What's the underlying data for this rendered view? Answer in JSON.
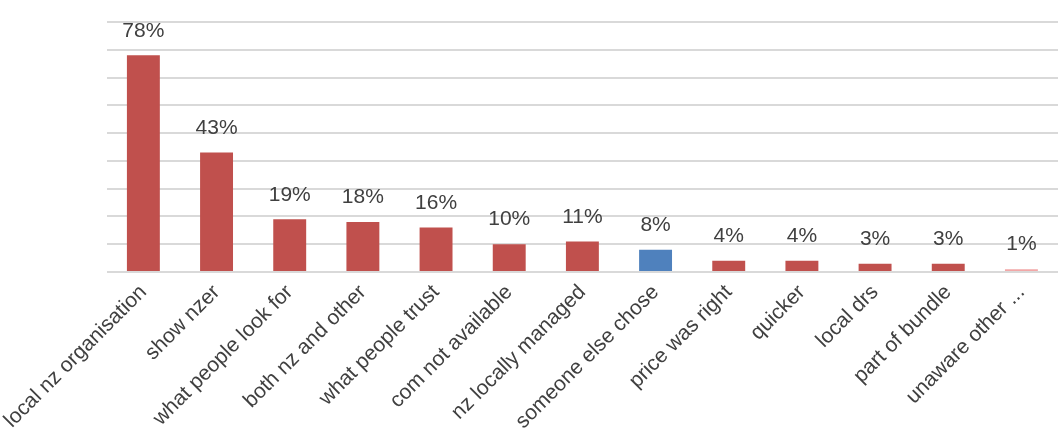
{
  "chart_data": {
    "type": "bar",
    "categories": [
      "local nz organisation",
      "show nzer",
      "what people look for",
      "both nz and other",
      "what people trust",
      "com not available",
      "nz locally managed",
      "someone else chose",
      "price was right",
      "quicker",
      "local drs",
      "part of bundle",
      "unaware other ..."
    ],
    "values": [
      78,
      43,
      19,
      18,
      16,
      10,
      11,
      8,
      4,
      4,
      3,
      3,
      1
    ],
    "value_labels": [
      "78%",
      "43%",
      "19%",
      "18%",
      "16%",
      "10%",
      "11%",
      "8%",
      "4%",
      "4%",
      "3%",
      "3%",
      "1%"
    ],
    "colors": [
      "#c0504d",
      "#c0504d",
      "#c0504d",
      "#c0504d",
      "#c0504d",
      "#c0504d",
      "#c0504d",
      "#4f81bd",
      "#c0504d",
      "#c0504d",
      "#c0504d",
      "#c0504d",
      "#f2a7a7"
    ],
    "ylim": [
      0,
      90
    ],
    "yticks": [
      {
        "value": 0,
        "label": null
      },
      {
        "value": 10,
        "label": null
      },
      {
        "value": 20,
        "label": null
      },
      {
        "value": 30,
        "label": null
      },
      {
        "value": 40,
        "label": null
      },
      {
        "value": 50,
        "label": null
      },
      {
        "value": 60,
        "label": null
      },
      {
        "value": 70,
        "label": null
      },
      {
        "value": 80,
        "label": null
      },
      {
        "value": 90,
        "label": null
      }
    ],
    "grid": "y",
    "legend": false,
    "tick_labels": "x"
  }
}
